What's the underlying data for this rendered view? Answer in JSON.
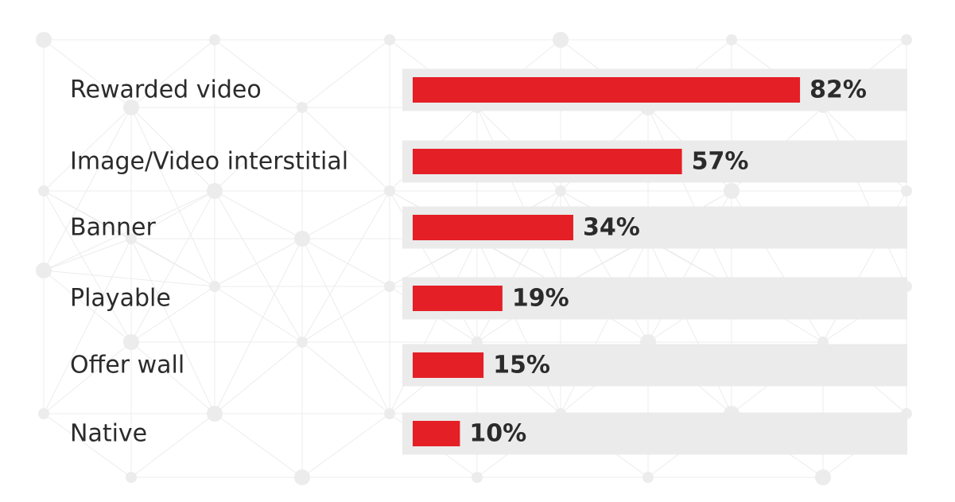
{
  "chart_data": {
    "type": "bar",
    "orientation": "horizontal",
    "categories": [
      "Rewarded video",
      "Image/Video interstitial",
      "Banner",
      "Playable",
      "Offer wall",
      "Native"
    ],
    "values": [
      82,
      57,
      34,
      19,
      15,
      10
    ],
    "value_labels": [
      "82%",
      "57%",
      "34%",
      "19%",
      "15%",
      "10%"
    ],
    "unit": "%",
    "xlim": [
      0,
      100
    ],
    "title": "",
    "xlabel": "",
    "ylabel": "",
    "grid": false,
    "legend": "none",
    "colors": {
      "bar": "#e41f26",
      "track": "#ebebeb",
      "text": "#2b2b2b",
      "background": "#ffffff",
      "pattern": "#ececec"
    }
  }
}
